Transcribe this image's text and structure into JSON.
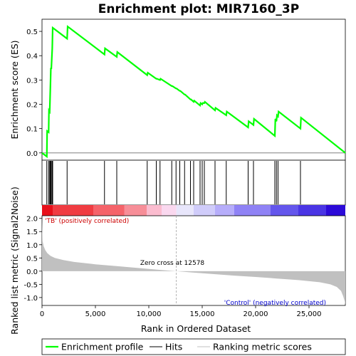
{
  "chart_data": {
    "type": "line",
    "title": "Enrichment plot: MIR7160_3P",
    "es_panel": {
      "ylabel": "Enrichment score (ES)",
      "ylim": [
        -0.03,
        0.55
      ],
      "yticks": [
        0.0,
        0.1,
        0.2,
        0.3,
        0.4,
        0.5
      ],
      "ytick_labels": [
        "0.0",
        "0.1",
        "0.2",
        "0.3",
        "0.4",
        "0.5"
      ],
      "series": [
        {
          "name": "Enrichment profile",
          "color": "#00ff00",
          "x": [
            0,
            450,
            480,
            620,
            650,
            720,
            780,
            830,
            870,
            960,
            1000,
            2350,
            2400,
            5850,
            5900,
            7000,
            7050,
            9850,
            9900,
            10700,
            10750,
            11050,
            11100,
            12150,
            12200,
            12550,
            12600,
            12900,
            12950,
            13350,
            13400,
            13900,
            13950,
            14200,
            14250,
            14800,
            14850,
            15000,
            15050,
            15200,
            15250,
            16200,
            16250,
            17250,
            17300,
            19300,
            19350,
            19800,
            19850,
            21800,
            21850,
            21950,
            22000,
            22100,
            22150,
            24200,
            24250,
            28400
          ],
          "y": [
            0.0,
            -0.015,
            0.09,
            0.085,
            0.175,
            0.17,
            0.265,
            0.35,
            0.345,
            0.43,
            0.515,
            0.47,
            0.52,
            0.405,
            0.43,
            0.395,
            0.415,
            0.32,
            0.33,
            0.305,
            0.305,
            0.3,
            0.305,
            0.275,
            0.275,
            0.265,
            0.265,
            0.255,
            0.255,
            0.24,
            0.24,
            0.22,
            0.22,
            0.21,
            0.215,
            0.195,
            0.205,
            0.2,
            0.205,
            0.205,
            0.21,
            0.175,
            0.185,
            0.155,
            0.17,
            0.105,
            0.13,
            0.115,
            0.14,
            0.07,
            0.14,
            0.13,
            0.155,
            0.15,
            0.17,
            0.1,
            0.145,
            0.0
          ]
        }
      ],
      "hits": [
        450,
        620,
        720,
        780,
        830,
        870,
        960,
        1000,
        2350,
        5850,
        7000,
        9850,
        10700,
        11050,
        12150,
        12550,
        12900,
        13350,
        13900,
        14200,
        14800,
        15000,
        15200,
        16200,
        17250,
        19300,
        19800,
        21800,
        21950,
        22100,
        24200
      ]
    },
    "ranked_panel": {
      "ylabel": "Ranked list metric (Signal2Noise)",
      "ylim": [
        -1.3,
        2.1
      ],
      "yticks": [
        -1.0,
        -0.5,
        0.0,
        0.5,
        1.0,
        1.5,
        2.0
      ],
      "ytick_labels": [
        "-1.0",
        "-0.5",
        "0.0",
        "0.5",
        "1.0",
        "1.5",
        "2.0"
      ],
      "positive_label": "'TB' (positively correlated)",
      "negative_label": "'Control' (negatively correlated)",
      "zero_cross_label": "Zero cross at 12578",
      "zero_cross": 12578,
      "metric_curve": {
        "x": [
          0,
          50,
          150,
          300,
          500,
          800,
          1200,
          2000,
          3000,
          5000,
          7000,
          9000,
          11000,
          12578,
          14000,
          16000,
          18000,
          20000,
          22000,
          24000,
          26000,
          27000,
          27600,
          28000,
          28200,
          28350,
          28400
        ],
        "y": [
          1.95,
          1.15,
          0.95,
          0.8,
          0.68,
          0.58,
          0.5,
          0.42,
          0.35,
          0.26,
          0.19,
          0.12,
          0.05,
          0.0,
          -0.05,
          -0.11,
          -0.17,
          -0.22,
          -0.28,
          -0.34,
          -0.42,
          -0.5,
          -0.6,
          -0.75,
          -0.95,
          -1.15,
          -1.28
        ]
      },
      "color_bar": [
        {
          "from": 0,
          "to": 1000,
          "color": "#e8101a"
        },
        {
          "from": 1000,
          "to": 4800,
          "color": "#f03c42"
        },
        {
          "from": 4800,
          "to": 7700,
          "color": "#f5636a"
        },
        {
          "from": 7700,
          "to": 9800,
          "color": "#f78e98"
        },
        {
          "from": 9800,
          "to": 11200,
          "color": "#fbbccf"
        },
        {
          "from": 11200,
          "to": 12578,
          "color": "#fad8ef"
        },
        {
          "from": 12578,
          "to": 14200,
          "color": "#e8e6fb"
        },
        {
          "from": 14200,
          "to": 16200,
          "color": "#d0ccfa"
        },
        {
          "from": 16200,
          "to": 18000,
          "color": "#b6adfa"
        },
        {
          "from": 18000,
          "to": 21400,
          "color": "#8f82f5"
        },
        {
          "from": 21400,
          "to": 24000,
          "color": "#6456ec"
        },
        {
          "from": 24000,
          "to": 26600,
          "color": "#4a35e4"
        },
        {
          "from": 26600,
          "to": 28400,
          "color": "#2c0ad8"
        }
      ]
    },
    "xlabel": "Rank in Ordered Dataset",
    "xlim": [
      0,
      28400
    ],
    "xticks": [
      0,
      5000,
      10000,
      15000,
      20000,
      25000
    ],
    "xtick_labels": [
      "0",
      "5,000",
      "10,000",
      "15,000",
      "20,000",
      "25,000"
    ],
    "legend": {
      "placement": "bottom",
      "items": [
        {
          "label": "Enrichment profile",
          "color": "#00ff00"
        },
        {
          "label": "Hits",
          "color": "#000000"
        },
        {
          "label": "Ranking metric scores",
          "color": "#c0c0c0"
        }
      ]
    }
  }
}
